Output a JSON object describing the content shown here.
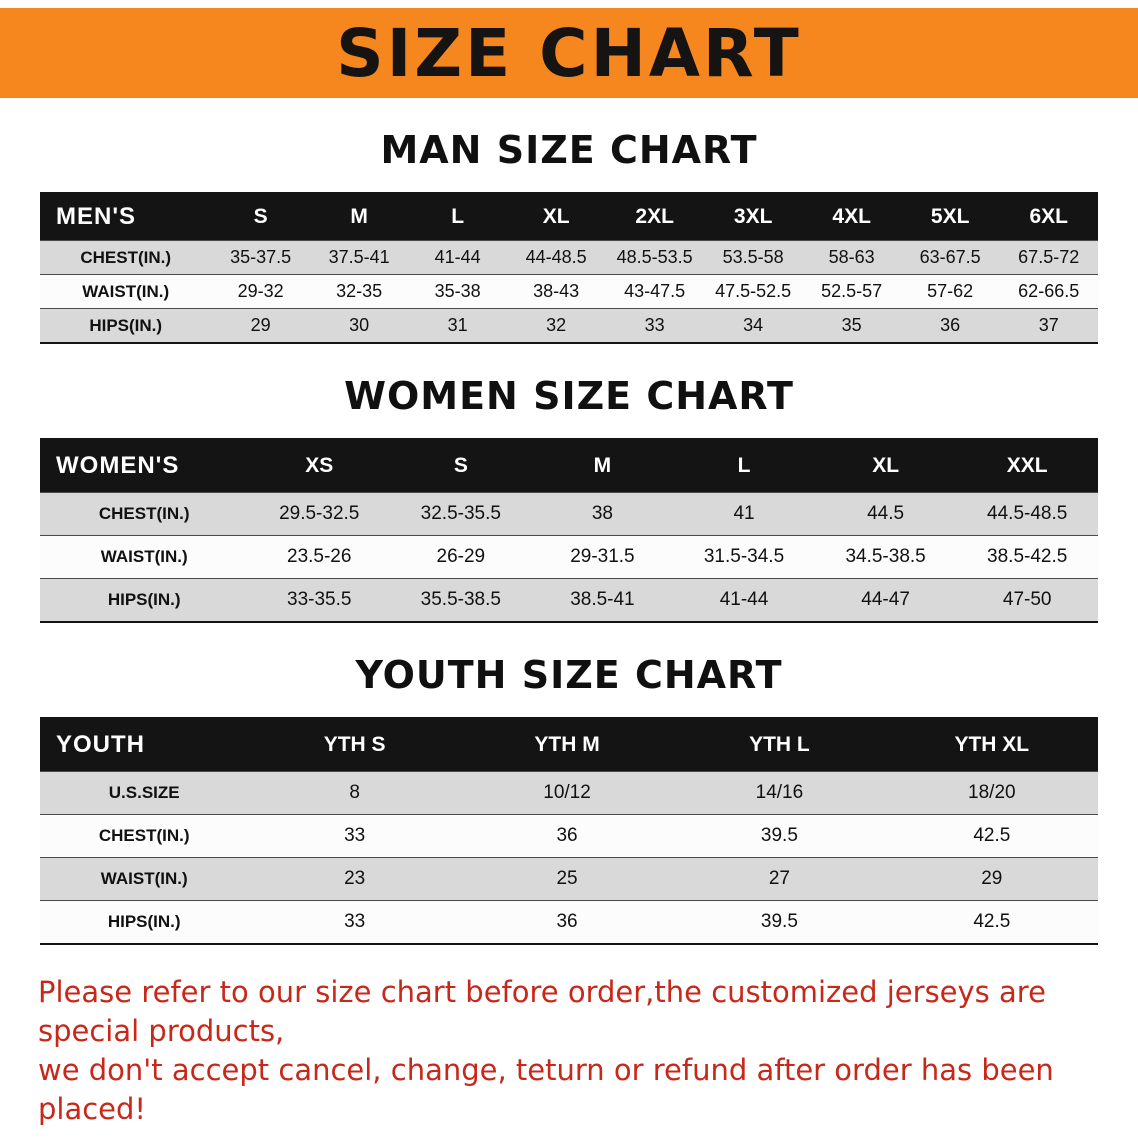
{
  "banner": {
    "title": "SIZE CHART",
    "bg_color": "#f6871f",
    "text_color": "#161412"
  },
  "sections": [
    {
      "heading": "MAN SIZE CHART",
      "table": {
        "header": [
          "MEN'S",
          "S",
          "M",
          "L",
          "XL",
          "2XL",
          "3XL",
          "4XL",
          "5XL",
          "6XL"
        ],
        "rows": [
          {
            "label": "CHEST(IN.)",
            "values": [
              "35-37.5",
              "37.5-41",
              "41-44",
              "44-48.5",
              "48.5-53.5",
              "53.5-58",
              "58-63",
              "63-67.5",
              "67.5-72"
            ]
          },
          {
            "label": "WAIST(IN.)",
            "values": [
              "29-32",
              "32-35",
              "35-38",
              "38-43",
              "43-47.5",
              "47.5-52.5",
              "52.5-57",
              "57-62",
              "62-66.5"
            ]
          },
          {
            "label": "HIPS(IN.)",
            "values": [
              "29",
              "30",
              "31",
              "32",
              "33",
              "34",
              "35",
              "36",
              "37"
            ]
          }
        ]
      }
    },
    {
      "heading": "WOMEN SIZE CHART",
      "table": {
        "header": [
          "WOMEN'S",
          "XS",
          "S",
          "M",
          "L",
          "XL",
          "XXL"
        ],
        "rows": [
          {
            "label": "CHEST(IN.)",
            "values": [
              "29.5-32.5",
              "32.5-35.5",
              "38",
              "41",
              "44.5",
              "44.5-48.5"
            ]
          },
          {
            "label": "WAIST(IN.)",
            "values": [
              "23.5-26",
              "26-29",
              "29-31.5",
              "31.5-34.5",
              "34.5-38.5",
              "38.5-42.5"
            ]
          },
          {
            "label": "HIPS(IN.)",
            "values": [
              "33-35.5",
              "35.5-38.5",
              "38.5-41",
              "41-44",
              "44-47",
              "47-50"
            ]
          }
        ]
      }
    },
    {
      "heading": "YOUTH SIZE CHART",
      "table": {
        "header": [
          "YOUTH",
          "YTH S",
          "YTH M",
          "YTH L",
          "YTH XL"
        ],
        "rows": [
          {
            "label": "U.S.SIZE",
            "values": [
              "8",
              "10/12",
              "14/16",
              "18/20"
            ]
          },
          {
            "label": "CHEST(IN.)",
            "values": [
              "33",
              "36",
              "39.5",
              "42.5"
            ]
          },
          {
            "label": "WAIST(IN.)",
            "values": [
              "23",
              "25",
              "27",
              "29"
            ]
          },
          {
            "label": "HIPS(IN.)",
            "values": [
              "33",
              "36",
              "39.5",
              "42.5"
            ]
          }
        ]
      }
    }
  ],
  "notice": {
    "line1": "Please refer to our size chart before order,the customized jerseys are special products,",
    "line2": "we don't accept cancel, change, teturn or refund after order has been placed!",
    "color": "#c8281a"
  }
}
